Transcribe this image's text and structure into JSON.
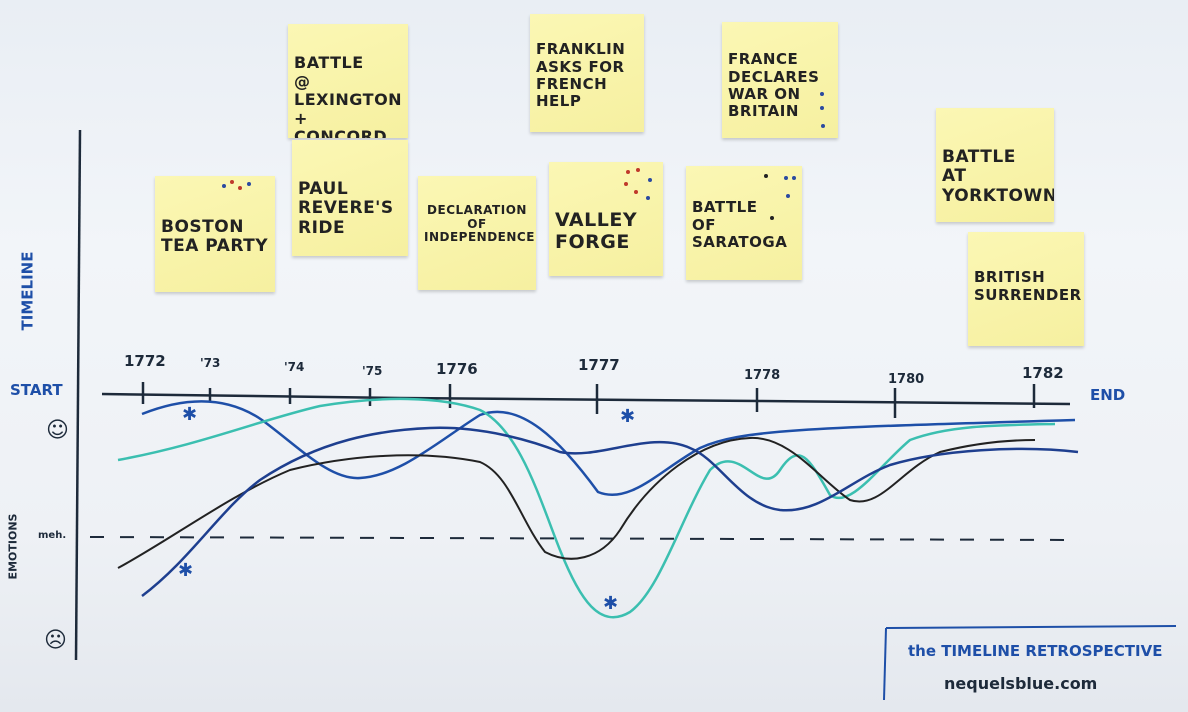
{
  "stickies": [
    {
      "id": "boston",
      "text": "BOSTON\nTEA PARTY"
    },
    {
      "id": "lexington",
      "text": "BATTLE\n@ LEXINGTON\n+ CONCORD"
    },
    {
      "id": "revere",
      "text": "PAUL\nREVERE'S\nRIDE"
    },
    {
      "id": "declaration",
      "text": "DECLARATION\nOF\nINDEPENDENCE"
    },
    {
      "id": "franklin",
      "text": "FRANKLIN\nASKS FOR\nFRENCH\nHELP"
    },
    {
      "id": "valley",
      "text": "VALLEY\nFORGE"
    },
    {
      "id": "france",
      "text": "FRANCE\nDECLARES\nWAR ON\nBRITAIN"
    },
    {
      "id": "saratoga",
      "text": "BATTLE\nOF\nSARATOGA"
    },
    {
      "id": "yorktown",
      "text": "BATTLE\nAT YORKTOWN"
    },
    {
      "id": "surrender",
      "text": "BRITISH\nSURRENDER"
    }
  ],
  "labels": {
    "timeline": "TIMELINE",
    "start": "START",
    "end": "END",
    "emotions": "EMOTIONS",
    "meh": "meh.",
    "happy_face": "☺",
    "sad_face": "☹"
  },
  "years": [
    "1772",
    "'73",
    "'74",
    "'75",
    "1776",
    "1777",
    "1778",
    "1780",
    "1782"
  ],
  "signature": {
    "title": "the TIMELINE RETROSPECTIVE",
    "url": "nequelsblue.com"
  },
  "colors": {
    "marker_blue": "#1e4fa8",
    "marker_teal": "#3bbfb0",
    "marker_black": "#222222",
    "marker_navy": "#1e3f8f",
    "sticky_yellow": "#f8f3a6"
  },
  "icons": [
    "star-icon",
    "happy-face-icon",
    "sad-face-icon"
  ]
}
